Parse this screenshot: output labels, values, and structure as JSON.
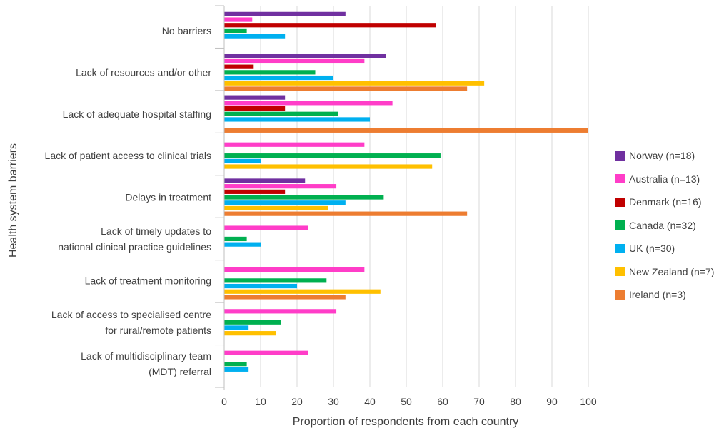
{
  "chart_data": {
    "type": "bar",
    "orientation": "horizontal",
    "ylabel": "Health system barriers",
    "xlabel": "Proportion of respondents from each country",
    "xlim": [
      0,
      100
    ],
    "xticks": [
      0,
      10,
      20,
      30,
      40,
      50,
      60,
      70,
      80,
      90,
      100
    ],
    "grid": true,
    "legend_position": "right",
    "categories": [
      [
        "No barriers"
      ],
      [
        "Lack of resources and/or other"
      ],
      [
        "Lack of adequate hospital staffing"
      ],
      [
        "Lack of patient access to clinical trials"
      ],
      [
        "Delays in treatment"
      ],
      [
        "Lack of timely updates to",
        "national clinical practice guidelines"
      ],
      [
        "Lack of treatment monitoring"
      ],
      [
        "Lack of access to specialised centre",
        "for rural/remote patients"
      ],
      [
        "Lack of multidisciplinary team",
        "(MDT) referral"
      ]
    ],
    "series": [
      {
        "name": "Norway (n=18)",
        "color": "#7030a0",
        "values": [
          33.3,
          44.4,
          16.7,
          0,
          22.2,
          0,
          0,
          0,
          0
        ]
      },
      {
        "name": "Australia (n=13)",
        "color": "#ff3dc8",
        "values": [
          7.7,
          38.5,
          46.2,
          38.5,
          30.8,
          23.1,
          38.5,
          30.8,
          23.1
        ]
      },
      {
        "name": "Denmark (n=16)",
        "color": "#c00000",
        "values": [
          58.1,
          8.1,
          16.7,
          0,
          16.7,
          0,
          0,
          0,
          0
        ]
      },
      {
        "name": "Canada (n=32)",
        "color": "#00b050",
        "values": [
          6.2,
          25,
          31.3,
          59.4,
          43.8,
          6.2,
          28.1,
          15.6,
          6.2
        ]
      },
      {
        "name": "UK (n=30)",
        "color": "#00b0f0",
        "values": [
          16.7,
          30,
          40,
          10,
          33.3,
          10,
          20,
          6.7,
          6.7
        ]
      },
      {
        "name": "New Zealand (n=7)",
        "color": "#ffc000",
        "values": [
          0,
          71.4,
          0,
          57.1,
          28.6,
          0,
          42.9,
          14.3,
          0
        ]
      },
      {
        "name": "Ireland (n=3)",
        "color": "#ed7d31",
        "values": [
          0,
          66.7,
          100,
          0,
          66.7,
          0,
          33.3,
          0,
          0
        ]
      }
    ]
  }
}
